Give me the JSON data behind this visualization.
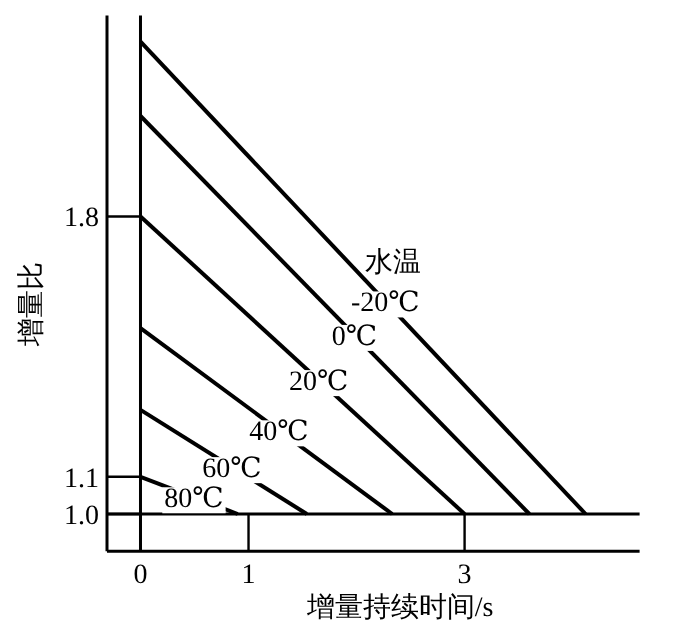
{
  "chart_data": {
    "type": "line",
    "xlabel": "增量持续时间/s",
    "ylabel": "增量比",
    "legend_title": "水温",
    "xlim": [
      -0.31,
      4.62
    ],
    "ylim": [
      0.9,
      2.34
    ],
    "xticks": [
      0,
      1,
      3
    ],
    "yticks": [
      {
        "value": 1.0,
        "label": "1.0"
      },
      {
        "value": 1.1,
        "label": "1.1"
      },
      {
        "value": 1.8,
        "label": "1.8"
      }
    ],
    "ref_lines": [
      {
        "axis": "y",
        "value": 1.0,
        "color": "#000000"
      },
      {
        "axis": "x",
        "value": 0,
        "color": "#000000"
      }
    ],
    "series": [
      {
        "name": "-20℃",
        "color": "#000000",
        "x": [
          0,
          4.12
        ],
        "values": [
          2.27,
          1.0
        ]
      },
      {
        "name": "0℃",
        "color": "#000000",
        "x": [
          0,
          3.6
        ],
        "values": [
          2.07,
          1.0
        ]
      },
      {
        "name": "20℃",
        "color": "#000000",
        "x": [
          0,
          3.0
        ],
        "values": [
          1.8,
          1.0
        ]
      },
      {
        "name": "40℃",
        "color": "#000000",
        "x": [
          0,
          2.33
        ],
        "values": [
          1.5,
          1.0
        ]
      },
      {
        "name": "60℃",
        "color": "#000000",
        "x": [
          0,
          1.54
        ],
        "values": [
          1.28,
          1.0
        ]
      },
      {
        "name": "80℃",
        "color": "#000000",
        "x": [
          0,
          0.9
        ],
        "values": [
          1.1,
          1.0
        ]
      }
    ]
  }
}
